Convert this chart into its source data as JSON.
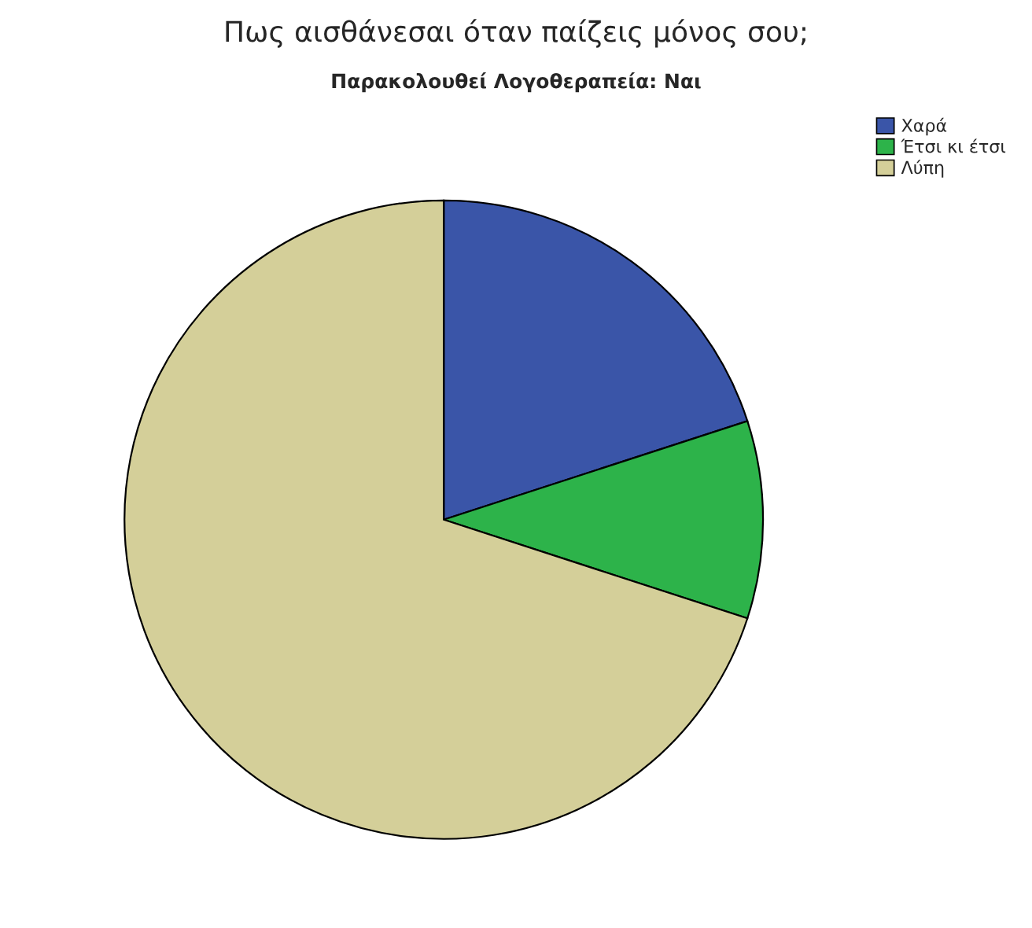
{
  "chart_data": {
    "type": "pie",
    "title": "Πως αισθάνεσαι όταν παίζεις μόνος σου;",
    "subtitle": "Παρακολουθεί Λογοθεραπεία: Ναι",
    "categories": [
      "Χαρά",
      "Έτσι κι έτσι",
      "Λύπη"
    ],
    "values": [
      20,
      10,
      70
    ],
    "colors": [
      "#3a55a8",
      "#2db34a",
      "#d4cf99"
    ],
    "legend": "top right"
  }
}
